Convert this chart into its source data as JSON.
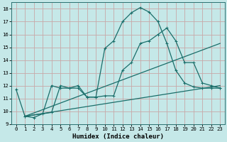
{
  "title": "",
  "xlabel": "Humidex (Indice chaleur)",
  "bg_color": "#c5e8e8",
  "line_color": "#1a6e6a",
  "grid_color": "#c8a8a8",
  "xlim": [
    -0.5,
    23.5
  ],
  "ylim": [
    9,
    18.5
  ],
  "yticks": [
    9,
    10,
    11,
    12,
    13,
    14,
    15,
    16,
    17,
    18
  ],
  "xticks": [
    0,
    1,
    2,
    3,
    4,
    5,
    6,
    7,
    8,
    9,
    10,
    11,
    12,
    13,
    14,
    15,
    16,
    17,
    18,
    19,
    20,
    21,
    22,
    23
  ],
  "line1": {
    "x": [
      0,
      1,
      2,
      3,
      4,
      5,
      6,
      7,
      8,
      9,
      10,
      11,
      12,
      13,
      14,
      15,
      16,
      17,
      18,
      19,
      20,
      21,
      22,
      23
    ],
    "y": [
      11.7,
      9.6,
      9.5,
      9.8,
      12.0,
      11.8,
      11.8,
      12.0,
      11.1,
      11.1,
      14.9,
      15.5,
      17.0,
      17.7,
      18.1,
      17.75,
      17.0,
      15.3,
      13.2,
      12.2,
      11.9,
      11.8,
      11.8,
      11.8
    ]
  },
  "line2": {
    "x": [
      1,
      4,
      5,
      6,
      7,
      8,
      9,
      10,
      11,
      12,
      13,
      14,
      15,
      16,
      17,
      18,
      19,
      20,
      21,
      22,
      23
    ],
    "y": [
      9.6,
      9.9,
      12.0,
      11.8,
      11.8,
      11.1,
      11.1,
      11.2,
      11.2,
      13.2,
      13.8,
      15.3,
      15.5,
      16.0,
      16.5,
      15.5,
      13.8,
      13.8,
      12.2,
      12.0,
      11.8
    ]
  },
  "line3_x": [
    1,
    23
  ],
  "line3_y": [
    9.6,
    15.3
  ],
  "line4_x": [
    1,
    23
  ],
  "line4_y": [
    9.6,
    12.0
  ]
}
